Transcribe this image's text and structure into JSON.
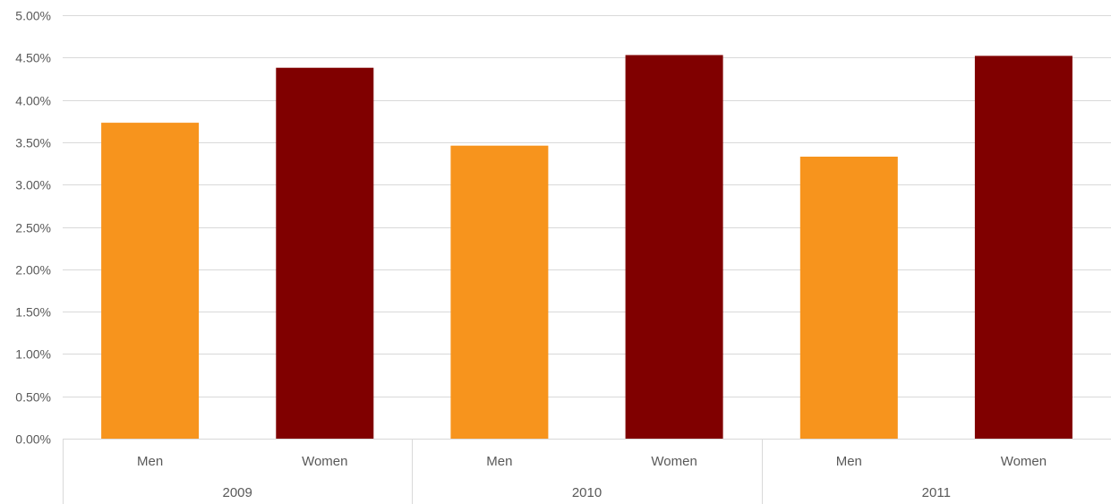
{
  "chart_data": {
    "type": "bar",
    "groups": [
      {
        "label": "2009",
        "categories": [
          "Men",
          "Women"
        ],
        "values": [
          3.73,
          4.38
        ]
      },
      {
        "label": "2010",
        "categories": [
          "Men",
          "Women"
        ],
        "values": [
          3.46,
          4.53
        ]
      },
      {
        "label": "2011",
        "categories": [
          "Men",
          "Women"
        ],
        "values": [
          3.33,
          4.52
        ]
      }
    ],
    "category_colors": {
      "Men": "#F7941D",
      "Women": "#800000"
    },
    "y_ticks": [
      "0.00%",
      "0.50%",
      "1.00%",
      "1.50%",
      "2.00%",
      "2.50%",
      "3.00%",
      "3.50%",
      "4.00%",
      "4.50%",
      "5.00%"
    ],
    "ylim": [
      0,
      5
    ],
    "y_unit": "%",
    "grid": true,
    "title": "",
    "xlabel": "",
    "ylabel": ""
  }
}
